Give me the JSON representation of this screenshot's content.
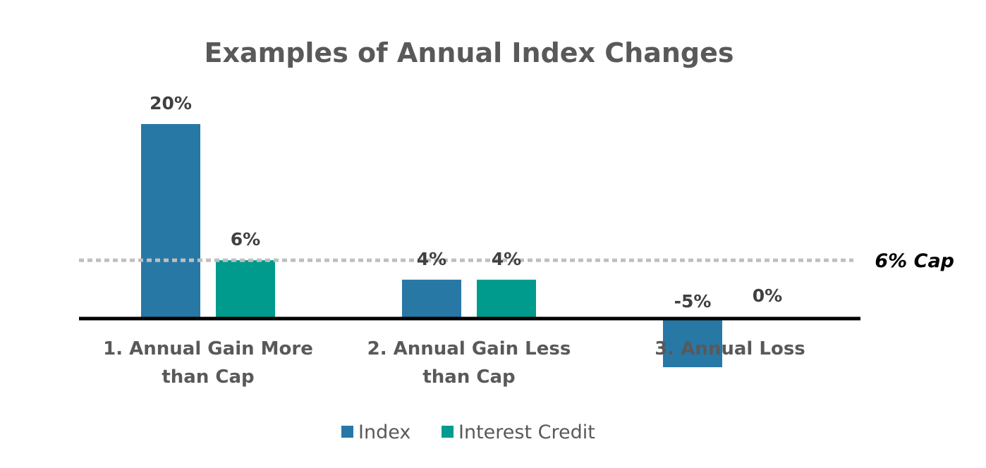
{
  "chart_data": {
    "type": "bar",
    "title": "Examples of Annual Index Changes",
    "categories": [
      [
        "1. Annual Gain More",
        "than Cap"
      ],
      [
        "2. Annual Gain Less",
        "than Cap"
      ],
      [
        "3. Annual Loss"
      ]
    ],
    "series": [
      {
        "name": "Index",
        "values": [
          20,
          4,
          -5
        ],
        "labels": [
          "20%",
          "4%",
          "-5%"
        ],
        "color": "#2878A6"
      },
      {
        "name": "Interest Credit",
        "values": [
          6,
          4,
          0
        ],
        "labels": [
          "6%",
          "4%",
          "0%"
        ],
        "color": "#009B8C"
      }
    ],
    "reference_line": {
      "value": 6,
      "label": "6% Cap",
      "style": "dotted",
      "color": "#BFBFBF"
    },
    "ylim": [
      -5,
      20
    ],
    "xlabel": "",
    "ylabel": "",
    "grid": false,
    "legend": "bottom"
  }
}
